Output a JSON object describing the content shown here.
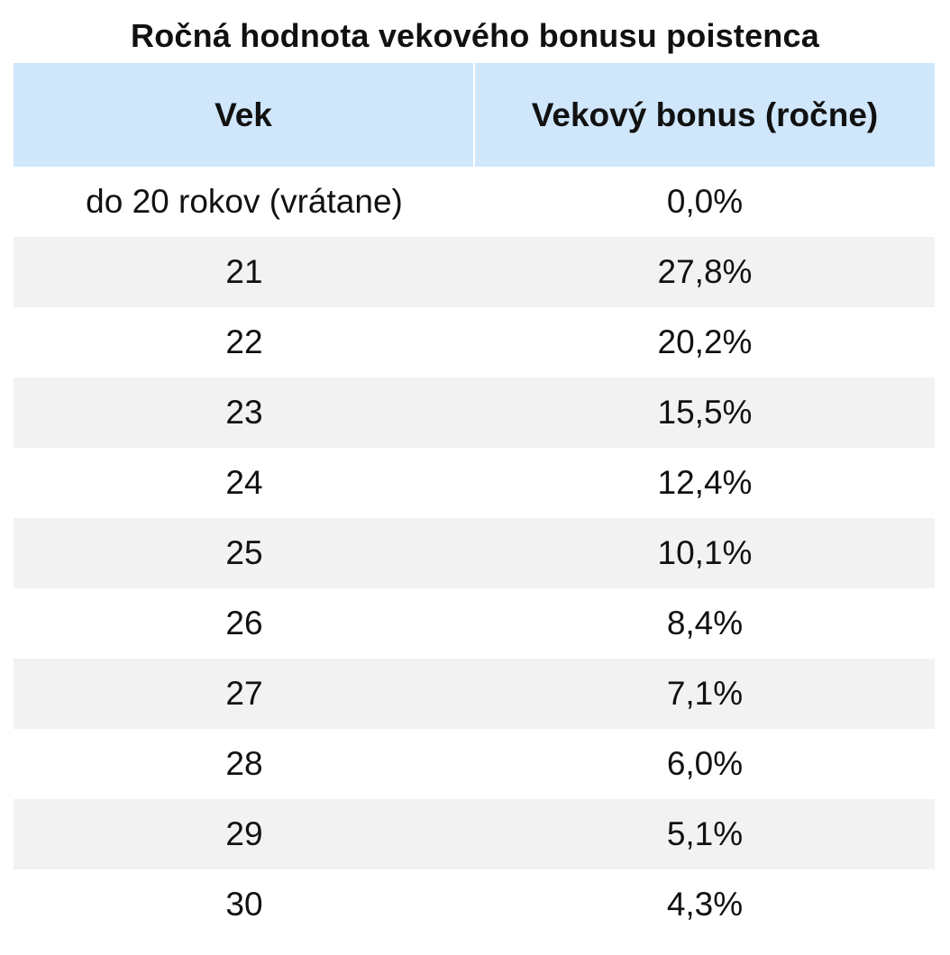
{
  "title": "Ročná hodnota vekového bonusu poistenca",
  "table": {
    "headers": [
      "Vek",
      "Vekový bonus (ročne)"
    ],
    "rows": [
      [
        "do 20 rokov (vrátane)",
        "0,0%"
      ],
      [
        "21",
        "27,8%"
      ],
      [
        "22",
        "20,2%"
      ],
      [
        "23",
        "15,5%"
      ],
      [
        "24",
        "12,4%"
      ],
      [
        "25",
        "10,1%"
      ],
      [
        "26",
        "8,4%"
      ],
      [
        "27",
        "7,1%"
      ],
      [
        "28",
        "6,0%"
      ],
      [
        "29",
        "5,1%"
      ],
      [
        "30",
        "4,3%"
      ]
    ]
  },
  "colors": {
    "header_bg": "#cfe6fb",
    "alt_row_bg": "#f2f2f2",
    "text": "#111111"
  }
}
